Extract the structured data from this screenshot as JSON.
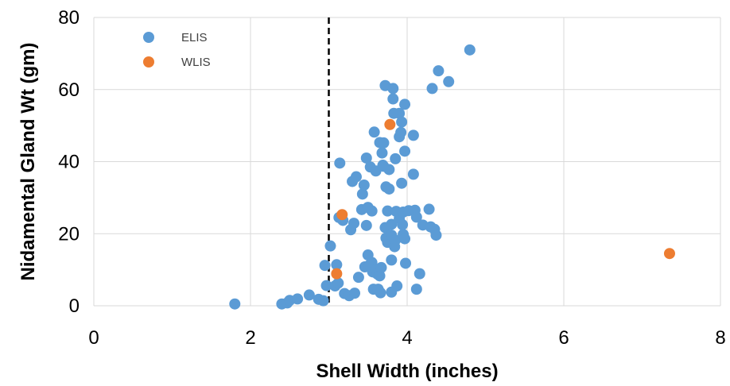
{
  "chart_data": {
    "type": "scatter",
    "title": "",
    "xlabel": "Shell Width (inches)",
    "ylabel": "Nidamental Gland Wt (gm)",
    "xlim": [
      0,
      8
    ],
    "ylim": [
      0,
      80
    ],
    "xticks": [
      "0",
      "2",
      "4",
      "6",
      "8"
    ],
    "yticks": [
      "0",
      "20",
      "40",
      "60",
      "80"
    ],
    "grid": true,
    "legend_position": "top-left",
    "reference_line": {
      "x": 3,
      "style": "dashed"
    },
    "series": [
      {
        "name": "ELIS",
        "color": "#5B9BD5",
        "points": [
          [
            1.8,
            0.5
          ],
          [
            2.4,
            0.5
          ],
          [
            2.47,
            0.8
          ],
          [
            2.5,
            1.5
          ],
          [
            2.6,
            1.9
          ],
          [
            2.75,
            3.0
          ],
          [
            2.87,
            1.8
          ],
          [
            2.93,
            1.4
          ],
          [
            2.95,
            11.2
          ],
          [
            2.97,
            5.6
          ],
          [
            3.02,
            16.6
          ],
          [
            3.1,
            11.4
          ],
          [
            3.08,
            5.5
          ],
          [
            3.12,
            6.3
          ],
          [
            3.13,
            24.5
          ],
          [
            3.14,
            39.6
          ],
          [
            3.18,
            23.7
          ],
          [
            3.2,
            3.4
          ],
          [
            3.26,
            2.8
          ],
          [
            3.28,
            21.1
          ],
          [
            3.3,
            34.5
          ],
          [
            3.32,
            22.9
          ],
          [
            3.33,
            3.5
          ],
          [
            3.35,
            35.8
          ],
          [
            3.38,
            7.9
          ],
          [
            3.42,
            26.7
          ],
          [
            3.43,
            31.0
          ],
          [
            3.45,
            33.5
          ],
          [
            3.46,
            10.8
          ],
          [
            3.48,
            22.3
          ],
          [
            3.48,
            41.0
          ],
          [
            3.5,
            27.3
          ],
          [
            3.5,
            14.1
          ],
          [
            3.52,
            11.3
          ],
          [
            3.53,
            38.5
          ],
          [
            3.55,
            26.3
          ],
          [
            3.55,
            12.0
          ],
          [
            3.56,
            9.4
          ],
          [
            3.57,
            4.6
          ],
          [
            3.58,
            48.2
          ],
          [
            3.6,
            37.4
          ],
          [
            3.6,
            10.0
          ],
          [
            3.62,
            8.8
          ],
          [
            3.63,
            4.6
          ],
          [
            3.65,
            45.3
          ],
          [
            3.65,
            8.3
          ],
          [
            3.66,
            3.6
          ],
          [
            3.67,
            10.6
          ],
          [
            3.68,
            42.4
          ],
          [
            3.69,
            39.0
          ],
          [
            3.7,
            38.7
          ],
          [
            3.7,
            45.2
          ],
          [
            3.72,
            61.1
          ],
          [
            3.72,
            21.7
          ],
          [
            3.73,
            18.8
          ],
          [
            3.73,
            33.0
          ],
          [
            3.75,
            26.3
          ],
          [
            3.75,
            17.6
          ],
          [
            3.77,
            37.8
          ],
          [
            3.77,
            32.4
          ],
          [
            3.8,
            22.6
          ],
          [
            3.8,
            19.6
          ],
          [
            3.8,
            12.7
          ],
          [
            3.8,
            3.8
          ],
          [
            3.82,
            60.3
          ],
          [
            3.82,
            57.4
          ],
          [
            3.83,
            53.4
          ],
          [
            3.84,
            16.4
          ],
          [
            3.85,
            40.8
          ],
          [
            3.85,
            18.2
          ],
          [
            3.86,
            26.2
          ],
          [
            3.87,
            5.5
          ],
          [
            3.9,
            53.4
          ],
          [
            3.9,
            46.9
          ],
          [
            3.9,
            24.2
          ],
          [
            3.92,
            48.1
          ],
          [
            3.93,
            51.0
          ],
          [
            3.93,
            34.0
          ],
          [
            3.94,
            22.5
          ],
          [
            3.95,
            26.0
          ],
          [
            3.95,
            19.8
          ],
          [
            3.97,
            55.9
          ],
          [
            3.97,
            42.9
          ],
          [
            3.97,
            18.6
          ],
          [
            3.98,
            11.8
          ],
          [
            4.02,
            26.4
          ],
          [
            4.08,
            47.3
          ],
          [
            4.08,
            36.5
          ],
          [
            4.1,
            26.5
          ],
          [
            4.12,
            24.6
          ],
          [
            4.12,
            4.6
          ],
          [
            4.16,
            8.9
          ],
          [
            4.2,
            22.4
          ],
          [
            4.28,
            26.8
          ],
          [
            4.3,
            21.9
          ],
          [
            4.32,
            60.3
          ],
          [
            4.35,
            21.2
          ],
          [
            4.37,
            19.6
          ],
          [
            4.4,
            65.2
          ],
          [
            4.53,
            62.2
          ],
          [
            4.8,
            71.0
          ]
        ]
      },
      {
        "name": "WLIS",
        "color": "#ED7D31",
        "points": [
          [
            3.1,
            8.9
          ],
          [
            3.17,
            25.3
          ],
          [
            3.78,
            50.3
          ],
          [
            7.35,
            14.5
          ]
        ]
      }
    ]
  }
}
